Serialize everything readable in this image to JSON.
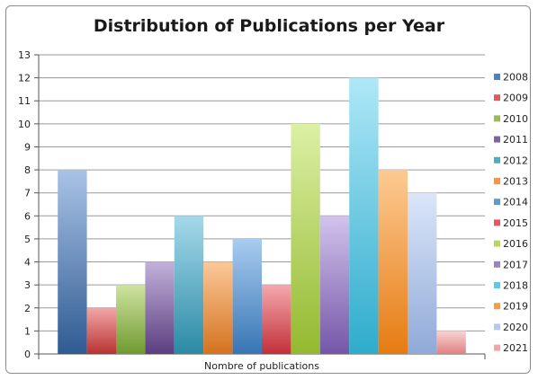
{
  "chart_data": {
    "type": "bar",
    "title": "Distribution of Publications per Year",
    "xlabel": "Nombre of publications",
    "ylabel": "",
    "ylim": [
      0,
      13
    ],
    "yticks": [
      0,
      1,
      2,
      3,
      4,
      5,
      6,
      7,
      8,
      9,
      10,
      11,
      12,
      13
    ],
    "grid": true,
    "legend_position": "right",
    "series": [
      {
        "name": "2008",
        "value": 8,
        "color": "#4f81bd",
        "dark": "#2f5b93",
        "light": "#a9c3e6"
      },
      {
        "name": "2009",
        "value": 2,
        "color": "#e05a5a",
        "dark": "#b83232",
        "light": "#f2a7a7"
      },
      {
        "name": "2010",
        "value": 3,
        "color": "#9bbb59",
        "dark": "#6f9a2f",
        "light": "#cfe3a2"
      },
      {
        "name": "2011",
        "value": 4,
        "color": "#8064a2",
        "dark": "#5b3e80",
        "light": "#c2b1da"
      },
      {
        "name": "2012",
        "value": 6,
        "color": "#4bacc6",
        "dark": "#2b8aa5",
        "light": "#a5d9ea"
      },
      {
        "name": "2013",
        "value": 4,
        "color": "#f79646",
        "dark": "#d4721f",
        "light": "#fbc898"
      },
      {
        "name": "2014",
        "value": 5,
        "color": "#5b9bd5",
        "dark": "#3775b4",
        "light": "#a9ccf0"
      },
      {
        "name": "2015",
        "value": 3,
        "color": "#e8545f",
        "dark": "#c13039",
        "light": "#f5a8ae"
      },
      {
        "name": "2016",
        "value": 10,
        "color": "#b6d957",
        "dark": "#93b92f",
        "light": "#dcf0a4"
      },
      {
        "name": "2017",
        "value": 6,
        "color": "#9b7fc7",
        "dark": "#7456a8",
        "light": "#d2c3ec"
      },
      {
        "name": "2018",
        "value": 12,
        "color": "#5cc9e6",
        "dark": "#2fabcc",
        "light": "#aee8f7"
      },
      {
        "name": "2019",
        "value": 8,
        "color": "#fb9b3c",
        "dark": "#e57b12",
        "light": "#fdca93"
      },
      {
        "name": "2020",
        "value": 7,
        "color": "#b4c9ee",
        "dark": "#8faad8",
        "light": "#dbe6f8"
      },
      {
        "name": "2021",
        "value": 1,
        "color": "#f2a5a5",
        "dark": "#e08080",
        "light": "#f9d3d3"
      }
    ]
  }
}
